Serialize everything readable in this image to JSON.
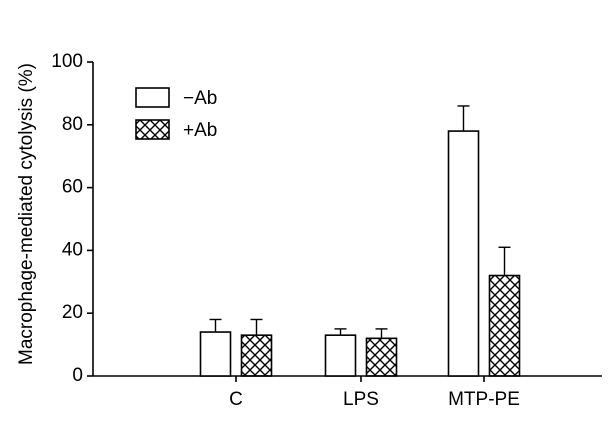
{
  "chart_data": {
    "type": "bar",
    "title": "",
    "ylabel": "Macrophage-mediated cytolysis (%)",
    "xlabel": "",
    "ylim": [
      0,
      100
    ],
    "yticks": [
      0,
      20,
      40,
      60,
      80,
      100
    ],
    "categories": [
      "C",
      "LPS",
      "MTP-PE"
    ],
    "series": [
      {
        "name": "−Ab",
        "pattern": "open",
        "values": [
          14,
          13,
          78
        ],
        "errors": [
          4,
          2,
          8
        ]
      },
      {
        "name": "+Ab",
        "pattern": "crosshatch",
        "values": [
          13,
          12,
          32
        ],
        "errors": [
          5,
          3,
          9
        ]
      }
    ],
    "legend": "top-left",
    "grid": false,
    "colors": {
      "stroke": "#000000",
      "fill": "#ffffff"
    }
  }
}
